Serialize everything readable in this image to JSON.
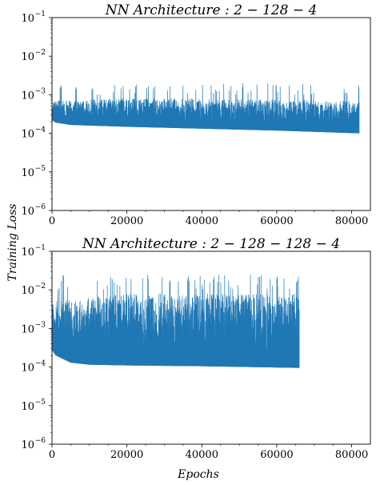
{
  "figure": {
    "ylabel": "Training Loss",
    "xlabel": "Epochs"
  },
  "chart_data": [
    {
      "type": "line",
      "title": "NN Architecture : 2 − 128 − 4",
      "yscale": "log",
      "ylim": [
        1e-06,
        0.1
      ],
      "xlim": [
        0,
        85000
      ],
      "x_ticks": [
        0,
        20000,
        40000,
        60000,
        80000
      ],
      "x_tick_labels": [
        "0",
        "20000",
        "40000",
        "60000",
        "80000"
      ],
      "y_ticks": [
        1e-06,
        1e-05,
        0.0001,
        0.001,
        0.01,
        0.1
      ],
      "y_tick_labels": [
        {
          "base": "10",
          "exp": "−6"
        },
        {
          "base": "10",
          "exp": "−5"
        },
        {
          "base": "10",
          "exp": "−4"
        },
        {
          "base": "10",
          "exp": "−3"
        },
        {
          "base": "10",
          "exp": "−2"
        },
        {
          "base": "10",
          "exp": "−1"
        }
      ],
      "grid": false,
      "color": "#1f77b4",
      "series": [
        {
          "x_end": 82000,
          "lower_envelope": [
            [
              0,
              0.00022
            ],
            [
              1000,
              0.00019
            ],
            [
              5000,
              0.000165
            ],
            [
              20000,
              0.000148
            ],
            [
              40000,
              0.000132
            ],
            [
              60000,
              0.000118
            ],
            [
              82000,
              0.0001
            ]
          ],
          "typical_upper": [
            [
              0,
              0.0007
            ],
            [
              20000,
              0.0008
            ],
            [
              40000,
              0.0008
            ],
            [
              60000,
              0.00075
            ],
            [
              82000,
              0.0007
            ]
          ],
          "peak_upper": 0.002
        }
      ]
    },
    {
      "type": "line",
      "title": "NN Architecture : 2 − 128 − 128 − 4",
      "yscale": "log",
      "ylim": [
        1e-06,
        0.1
      ],
      "xlim": [
        0,
        85000
      ],
      "x_ticks": [
        0,
        20000,
        40000,
        60000,
        80000
      ],
      "x_tick_labels": [
        "0",
        "20000",
        "40000",
        "60000",
        "80000"
      ],
      "y_ticks": [
        1e-06,
        1e-05,
        0.0001,
        0.001,
        0.01,
        0.1
      ],
      "y_tick_labels": [
        {
          "base": "10",
          "exp": "−6"
        },
        {
          "base": "10",
          "exp": "−5"
        },
        {
          "base": "10",
          "exp": "−4"
        },
        {
          "base": "10",
          "exp": "−3"
        },
        {
          "base": "10",
          "exp": "−2"
        },
        {
          "base": "10",
          "exp": "−1"
        }
      ],
      "grid": false,
      "color": "#1f77b4",
      "series": [
        {
          "x_end": 66000,
          "lower_envelope": [
            [
              0,
              0.00028
            ],
            [
              1000,
              0.0002
            ],
            [
              5000,
              0.00013
            ],
            [
              10000,
              0.000115
            ],
            [
              20000,
              0.00011
            ],
            [
              40000,
              0.000105
            ],
            [
              66000,
              9.5e-05
            ]
          ],
          "typical_upper": [
            [
              0,
              0.005
            ],
            [
              20000,
              0.008
            ],
            [
              40000,
              0.008
            ],
            [
              66000,
              0.008
            ]
          ],
          "peak_upper": 0.025
        }
      ]
    }
  ]
}
